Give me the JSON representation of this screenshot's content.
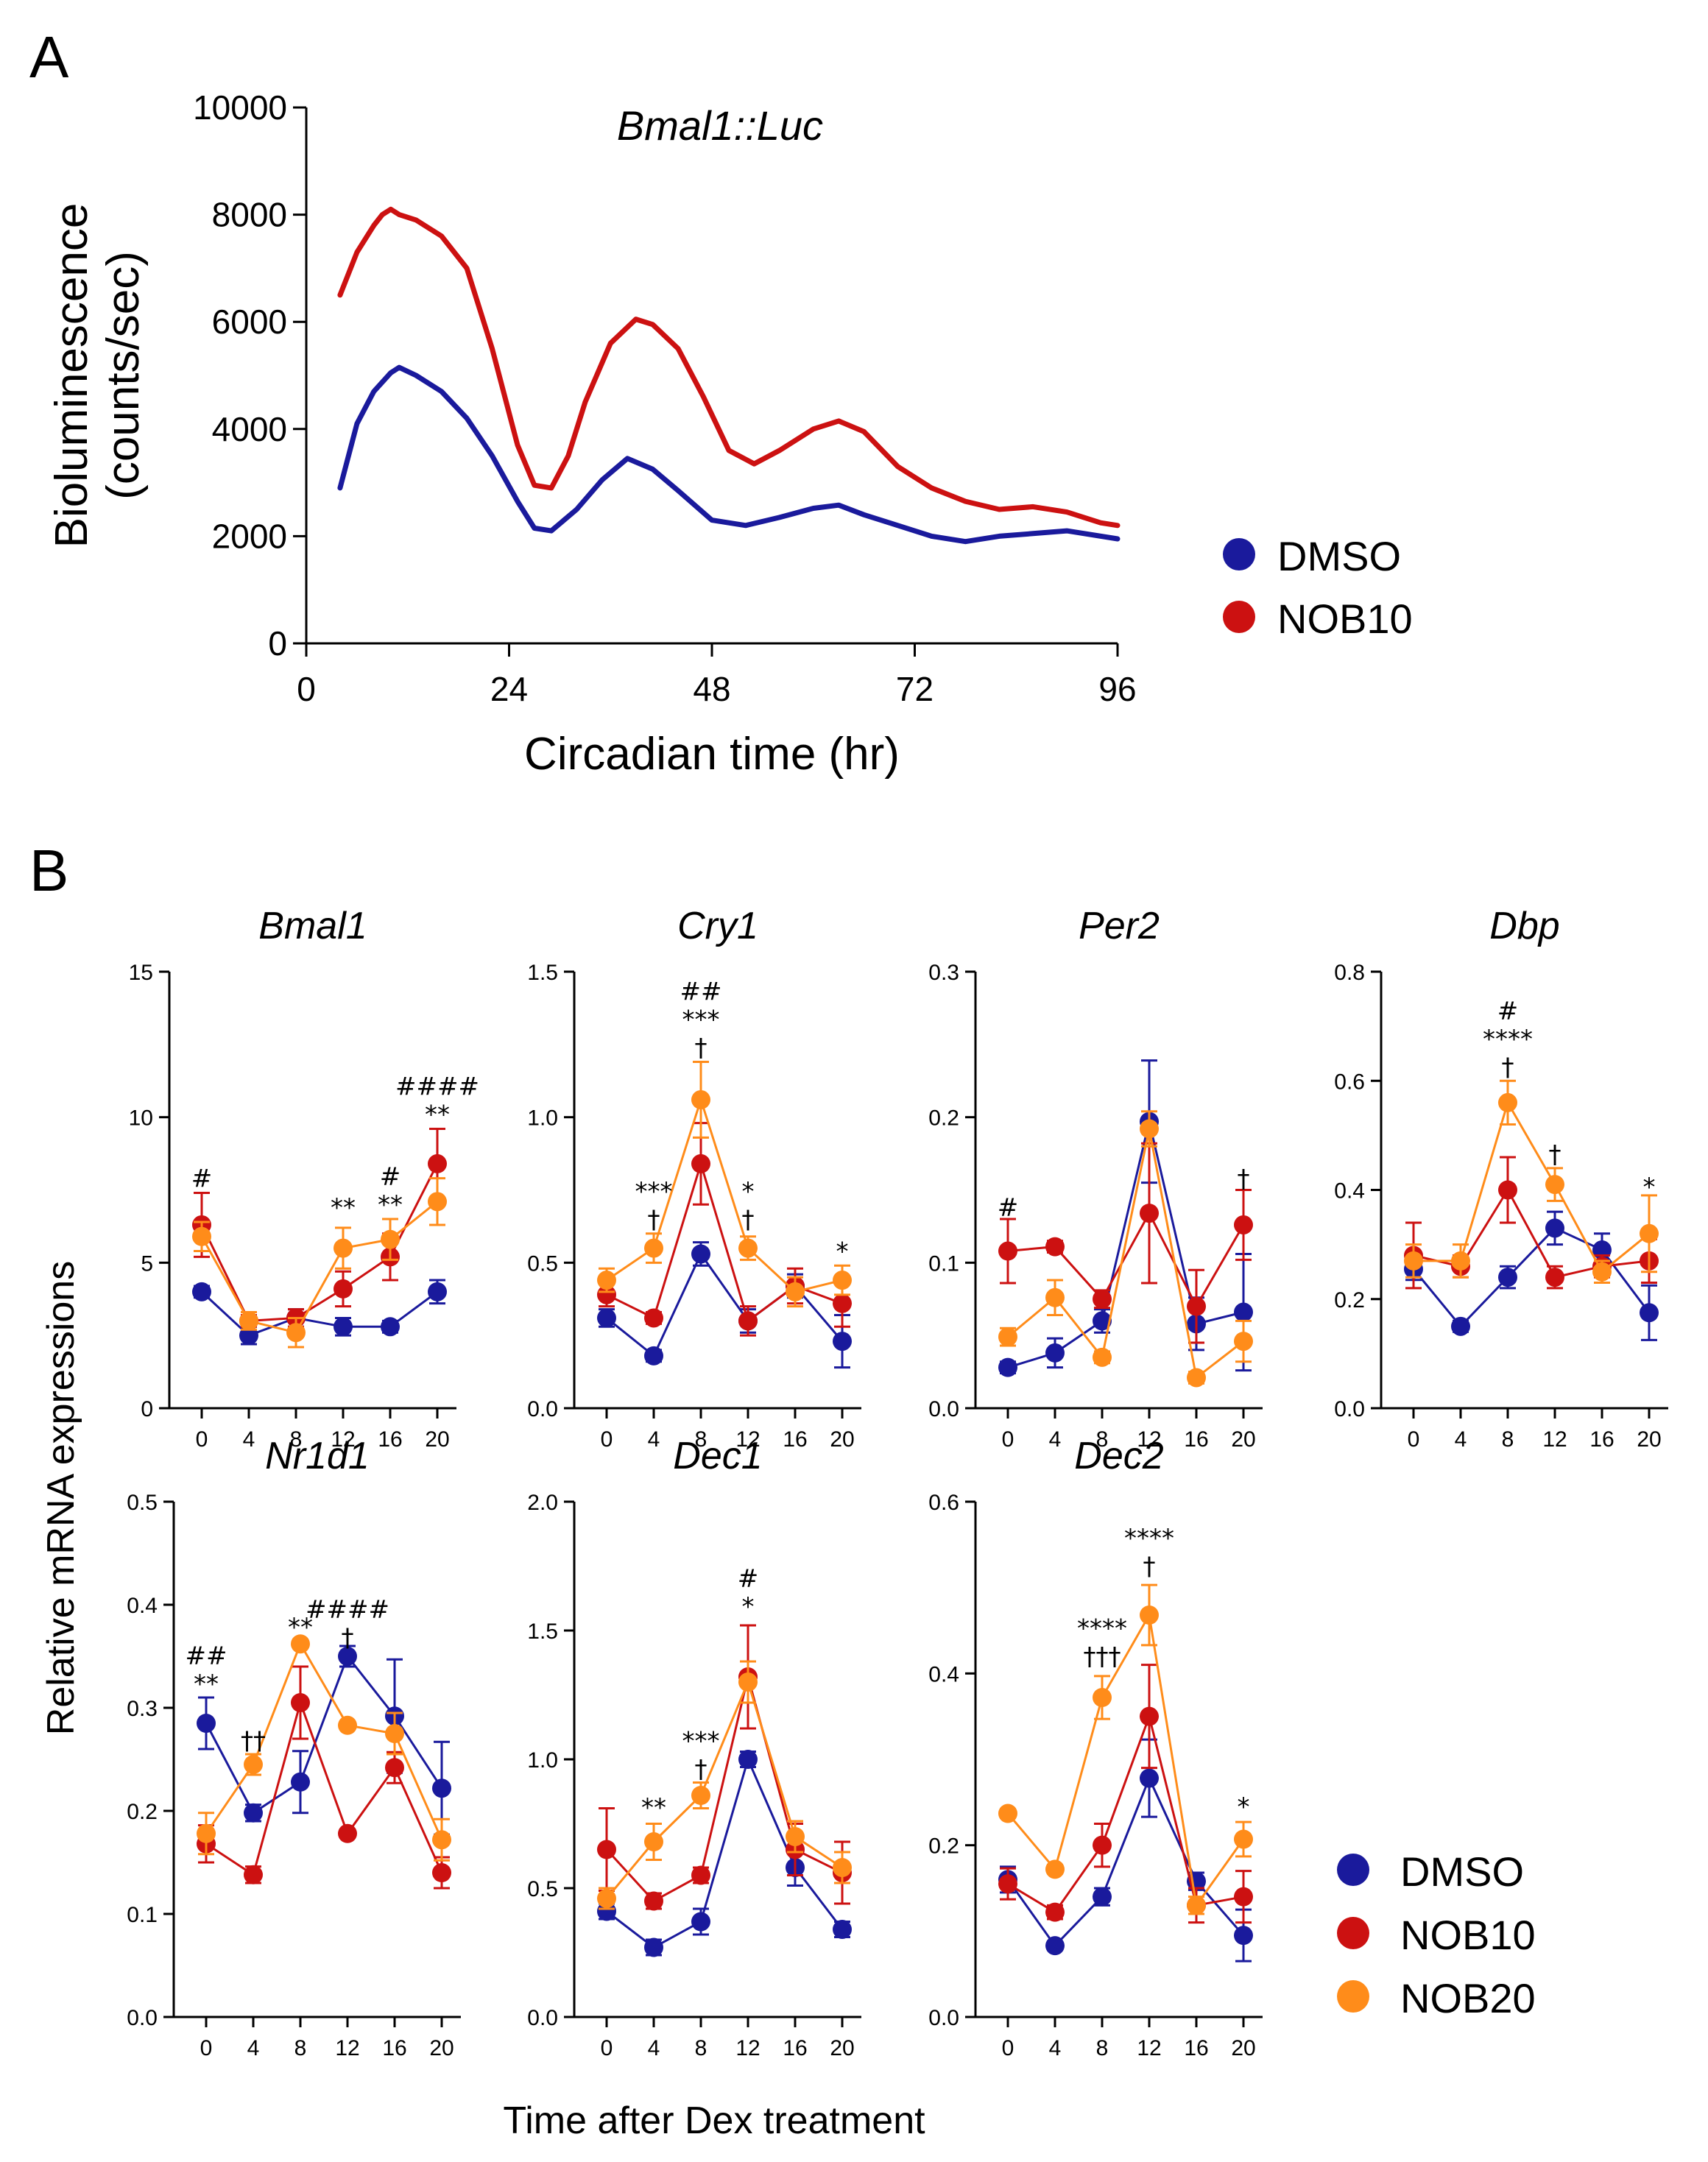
{
  "colors": {
    "DMSO": "#1a1a9c",
    "NOB10": "#cc1111",
    "NOB20": "#ff8c1a"
  },
  "panel_labels": {
    "a": "A",
    "b": "B"
  },
  "chart_data": [
    {
      "type": "line",
      "title": "Bmal1::Luc",
      "xlabel": "Circadian time (hr)",
      "ylabel": [
        "Bioluminescence",
        "(counts/sec)"
      ],
      "xlim": [
        0,
        96
      ],
      "ylim": [
        0,
        10000
      ],
      "xticks": [
        0,
        24,
        48,
        72,
        96
      ],
      "yticks": [
        0,
        2000,
        4000,
        6000,
        8000,
        10000
      ],
      "legend": [
        "DMSO",
        "NOB10"
      ],
      "series": [
        {
          "name": "DMSO",
          "x": [
            4,
            6,
            8,
            10,
            11,
            13,
            16,
            19,
            22,
            25,
            27,
            29,
            32,
            35,
            38,
            41,
            44,
            48,
            52,
            56,
            60,
            63,
            66,
            70,
            74,
            78,
            82,
            86,
            90,
            96
          ],
          "y": [
            2900,
            4100,
            4700,
            5050,
            5150,
            5000,
            4700,
            4200,
            3500,
            2650,
            2150,
            2100,
            2500,
            3050,
            3450,
            3250,
            2850,
            2300,
            2200,
            2350,
            2520,
            2580,
            2400,
            2200,
            2000,
            1900,
            2000,
            2050,
            2100,
            1950
          ]
        },
        {
          "name": "NOB10",
          "x": [
            4,
            6,
            8,
            9,
            10,
            11,
            13,
            16,
            19,
            22,
            25,
            27,
            29,
            31,
            33,
            36,
            39,
            41,
            44,
            47,
            50,
            53,
            56,
            60,
            63,
            66,
            70,
            74,
            78,
            82,
            86,
            90,
            94,
            96
          ],
          "y": [
            6500,
            7300,
            7800,
            8000,
            8100,
            8000,
            7900,
            7600,
            7000,
            5500,
            3700,
            2950,
            2900,
            3500,
            4500,
            5600,
            6050,
            5950,
            5500,
            4600,
            3600,
            3350,
            3600,
            4000,
            4150,
            3950,
            3300,
            2900,
            2650,
            2500,
            2550,
            2450,
            2250,
            2200
          ]
        }
      ]
    },
    {
      "type": "line",
      "title": "Bmal1",
      "x": [
        0,
        4,
        8,
        12,
        16,
        20
      ],
      "ylim": [
        0,
        15
      ],
      "yticks": [
        0,
        5,
        10,
        15
      ],
      "ytick_labels": [
        "0",
        "5",
        "10",
        "15"
      ],
      "series": [
        {
          "name": "DMSO",
          "values": [
            4.0,
            2.5,
            3.1,
            2.8,
            2.8,
            4.0
          ],
          "err": [
            0.2,
            0.3,
            0.3,
            0.3,
            0.2,
            0.4
          ]
        },
        {
          "name": "NOB10",
          "values": [
            6.3,
            3.0,
            3.1,
            4.1,
            5.2,
            8.4
          ],
          "err": [
            1.1,
            0.2,
            0.3,
            0.6,
            0.8,
            1.2
          ]
        },
        {
          "name": "NOB20",
          "values": [
            5.9,
            3.0,
            2.6,
            5.5,
            5.8,
            7.1
          ],
          "err": [
            0.5,
            0.3,
            0.5,
            0.7,
            0.7,
            0.8
          ]
        }
      ],
      "annotations": [
        {
          "x": 0,
          "lines": [
            "#"
          ],
          "base": 7.6
        },
        {
          "x": 12,
          "lines": [
            "**"
          ],
          "base": 6.6
        },
        {
          "x": 16,
          "lines": [
            "#",
            "**"
          ],
          "base": 6.7
        },
        {
          "x": 20,
          "lines": [
            "####",
            "**"
          ],
          "base": 9.8
        }
      ]
    },
    {
      "type": "line",
      "title": "Cry1",
      "x": [
        0,
        4,
        8,
        12,
        16,
        20
      ],
      "ylim": [
        0,
        1.5
      ],
      "yticks": [
        0,
        0.5,
        1.0,
        1.5
      ],
      "ytick_labels": [
        "0.0",
        "0.5",
        "1.0",
        "1.5"
      ],
      "series": [
        {
          "name": "DMSO",
          "values": [
            0.31,
            0.18,
            0.53,
            0.3,
            0.42,
            0.23
          ],
          "err": [
            0.03,
            0.02,
            0.04,
            0.04,
            0.04,
            0.09
          ]
        },
        {
          "name": "NOB10",
          "values": [
            0.39,
            0.31,
            0.84,
            0.3,
            0.42,
            0.36
          ],
          "err": [
            0.04,
            0.02,
            0.14,
            0.05,
            0.06,
            0.08
          ]
        },
        {
          "name": "NOB20",
          "values": [
            0.44,
            0.55,
            1.06,
            0.55,
            0.4,
            0.44
          ],
          "err": [
            0.04,
            0.05,
            0.13,
            0.04,
            0.05,
            0.05
          ]
        }
      ],
      "annotations": [
        {
          "x": 4,
          "lines": [
            "***",
            "†"
          ],
          "base": 0.62
        },
        {
          "x": 8,
          "lines": [
            "##",
            "***",
            "†"
          ],
          "base": 1.21
        },
        {
          "x": 12,
          "lines": [
            "*",
            "†"
          ],
          "base": 0.62
        },
        {
          "x": 20,
          "lines": [
            "*"
          ],
          "base": 0.51
        }
      ]
    },
    {
      "type": "line",
      "title": "Per2",
      "x": [
        0,
        4,
        8,
        12,
        16,
        20
      ],
      "ylim": [
        0,
        0.3
      ],
      "yticks": [
        0,
        0.1,
        0.2,
        0.3
      ],
      "ytick_labels": [
        "0.0",
        "0.1",
        "0.2",
        "0.3"
      ],
      "series": [
        {
          "name": "DMSO",
          "values": [
            0.028,
            0.038,
            0.06,
            0.197,
            0.058,
            0.066
          ],
          "err": [
            0.004,
            0.01,
            0.008,
            0.042,
            0.018,
            0.04
          ]
        },
        {
          "name": "NOB10",
          "values": [
            0.108,
            0.111,
            0.075,
            0.134,
            0.07,
            0.126
          ],
          "err": [
            0.022,
            0.004,
            0.006,
            0.048,
            0.025,
            0.024
          ]
        },
        {
          "name": "NOB20",
          "values": [
            0.049,
            0.076,
            0.035,
            0.192,
            0.021,
            0.046
          ],
          "err": [
            0.006,
            0.012,
            0.004,
            0.012,
            0.004,
            0.014
          ]
        }
      ],
      "annotations": [
        {
          "x": 0,
          "lines": [
            "#"
          ],
          "base": 0.132
        },
        {
          "x": 20,
          "lines": [
            "†"
          ],
          "base": 0.152
        }
      ]
    },
    {
      "type": "line",
      "title": "Dbp",
      "x": [
        0,
        4,
        8,
        12,
        16,
        20
      ],
      "ylim": [
        0,
        0.8
      ],
      "yticks": [
        0,
        0.2,
        0.4,
        0.6,
        0.8
      ],
      "ytick_labels": [
        "0.0",
        "0.2",
        "0.4",
        "0.6",
        "0.8"
      ],
      "series": [
        {
          "name": "DMSO",
          "values": [
            0.255,
            0.15,
            0.24,
            0.33,
            0.29,
            0.175
          ],
          "err": [
            0.02,
            0.01,
            0.02,
            0.03,
            0.03,
            0.05
          ]
        },
        {
          "name": "NOB10",
          "values": [
            0.28,
            0.26,
            0.4,
            0.24,
            0.26,
            0.27
          ],
          "err": [
            0.06,
            0.02,
            0.06,
            0.02,
            0.02,
            0.04
          ]
        },
        {
          "name": "NOB20",
          "values": [
            0.27,
            0.27,
            0.56,
            0.41,
            0.25,
            0.32
          ],
          "err": [
            0.03,
            0.03,
            0.04,
            0.03,
            0.02,
            0.07
          ]
        }
      ],
      "annotations": [
        {
          "x": 8,
          "lines": [
            "#",
            "****",
            "†"
          ],
          "base": 0.61
        },
        {
          "x": 12,
          "lines": [
            "†"
          ],
          "base": 0.45
        },
        {
          "x": 20,
          "lines": [
            "*"
          ],
          "base": 0.39
        }
      ]
    },
    {
      "type": "line",
      "title": "Nr1d1",
      "x": [
        0,
        4,
        8,
        12,
        16,
        20
      ],
      "ylim": [
        0,
        0.5
      ],
      "yticks": [
        0,
        0.1,
        0.2,
        0.3,
        0.4,
        0.5
      ],
      "ytick_labels": [
        "0.0",
        "0.1",
        "0.2",
        "0.3",
        "0.4",
        "0.5"
      ],
      "series": [
        {
          "name": "DMSO",
          "values": [
            0.285,
            0.198,
            0.228,
            0.35,
            0.292,
            0.222
          ],
          "err": [
            0.025,
            0.008,
            0.03,
            0.01,
            0.055,
            0.045
          ]
        },
        {
          "name": "NOB10",
          "values": [
            0.168,
            0.138,
            0.305,
            0.178,
            0.242,
            0.14
          ],
          "err": [
            0.018,
            0.008,
            0.035,
            0.004,
            0.015,
            0.015
          ]
        },
        {
          "name": "NOB20",
          "values": [
            0.178,
            0.245,
            0.362,
            0.283,
            0.275,
            0.172
          ],
          "err": [
            0.02,
            0.01,
            0.004,
            0.004,
            0.02,
            0.02
          ]
        }
      ],
      "annotations": [
        {
          "x": 0,
          "lines": [
            "##",
            "**"
          ],
          "base": 0.315
        },
        {
          "x": 4,
          "lines": [
            "††"
          ],
          "base": 0.26
        },
        {
          "x": 8,
          "lines": [
            "**"
          ],
          "base": 0.37
        },
        {
          "x": 12,
          "lines": [
            "####",
            "†"
          ],
          "base": 0.36
        }
      ]
    },
    {
      "type": "line",
      "title": "Dec1",
      "x": [
        0,
        4,
        8,
        12,
        16,
        20
      ],
      "ylim": [
        0,
        2.0
      ],
      "yticks": [
        0,
        0.5,
        1.0,
        1.5,
        2.0
      ],
      "ytick_labels": [
        "0.0",
        "0.5",
        "1.0",
        "1.5",
        "2.0"
      ],
      "series": [
        {
          "name": "DMSO",
          "values": [
            0.41,
            0.27,
            0.37,
            1.0,
            0.58,
            0.34
          ],
          "err": [
            0.03,
            0.03,
            0.05,
            0.03,
            0.07,
            0.03
          ]
        },
        {
          "name": "NOB10",
          "values": [
            0.65,
            0.45,
            0.55,
            1.32,
            0.65,
            0.56
          ],
          "err": [
            0.16,
            0.03,
            0.03,
            0.2,
            0.1,
            0.12
          ]
        },
        {
          "name": "NOB20",
          "values": [
            0.46,
            0.68,
            0.86,
            1.3,
            0.7,
            0.58
          ],
          "err": [
            0.04,
            0.07,
            0.05,
            0.08,
            0.06,
            0.06
          ]
        }
      ],
      "annotations": [
        {
          "x": 4,
          "lines": [
            "**"
          ],
          "base": 0.78
        },
        {
          "x": 8,
          "lines": [
            "***",
            "†"
          ],
          "base": 0.93
        },
        {
          "x": 12,
          "lines": [
            "#",
            "*"
          ],
          "base": 1.56
        }
      ]
    },
    {
      "type": "line",
      "title": "Dec2",
      "x": [
        0,
        4,
        8,
        12,
        16,
        20
      ],
      "ylim": [
        0,
        0.6
      ],
      "yticks": [
        0,
        0.2,
        0.4,
        0.6
      ],
      "ytick_labels": [
        "0.0",
        "0.2",
        "0.4",
        "0.6"
      ],
      "series": [
        {
          "name": "DMSO",
          "values": [
            0.16,
            0.083,
            0.14,
            0.278,
            0.158,
            0.095
          ],
          "err": [
            0.015,
            0.005,
            0.01,
            0.045,
            0.01,
            0.03
          ]
        },
        {
          "name": "NOB10",
          "values": [
            0.155,
            0.122,
            0.2,
            0.35,
            0.13,
            0.14
          ],
          "err": [
            0.018,
            0.008,
            0.025,
            0.06,
            0.02,
            0.03
          ]
        },
        {
          "name": "NOB20",
          "values": [
            0.237,
            0.172,
            0.372,
            0.468,
            0.13,
            0.207
          ],
          "err": [
            0.005,
            0.005,
            0.025,
            0.035,
            0.01,
            0.02
          ]
        }
      ],
      "annotations": [
        {
          "x": 8,
          "lines": [
            "****",
            "†††"
          ],
          "base": 0.41
        },
        {
          "x": 12,
          "lines": [
            "****",
            "†"
          ],
          "base": 0.515
        },
        {
          "x": 20,
          "lines": [
            "*"
          ],
          "base": 0.235
        }
      ]
    }
  ],
  "panel_b_ylabel": "Relative mRNA expressions",
  "panel_b_xlabel": "Time after Dex treatment",
  "legend_b": [
    "DMSO",
    "NOB10",
    "NOB20"
  ]
}
